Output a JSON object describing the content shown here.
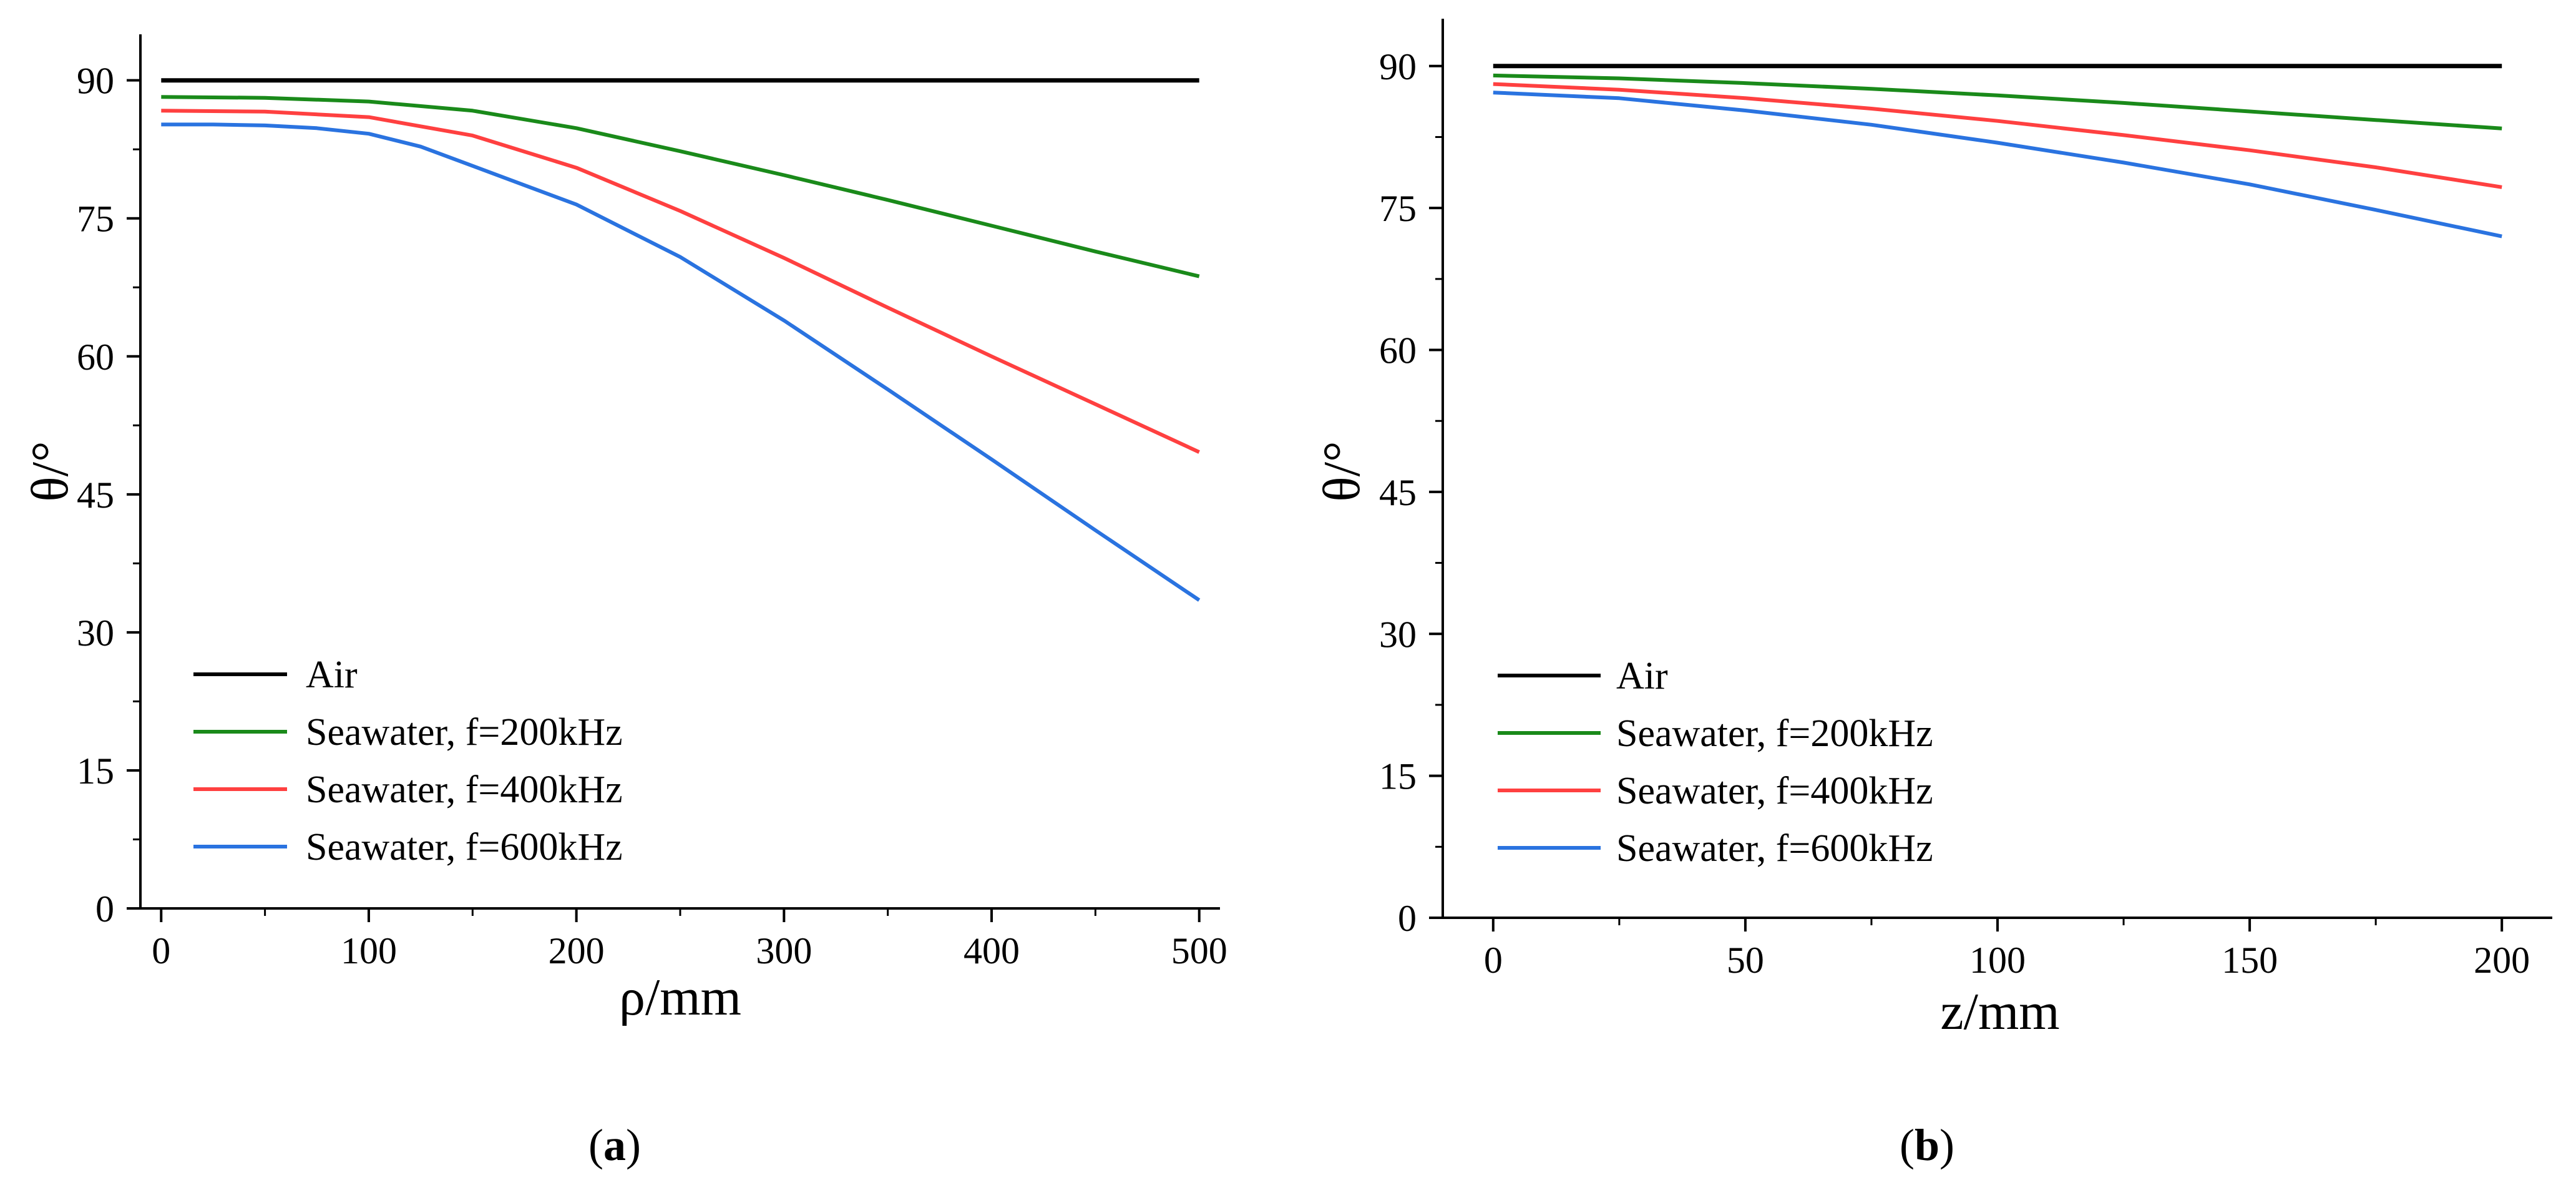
{
  "chart_data": [
    {
      "panel": "a",
      "type": "line",
      "caption_label": "a",
      "title": "",
      "xlabel": "ρ/mm",
      "ylabel": "θ/°",
      "xlim": [
        -10,
        510
      ],
      "ylim": [
        0,
        95
      ],
      "xticks": [
        0,
        100,
        200,
        300,
        400,
        500
      ],
      "yticks": [
        0,
        15,
        30,
        45,
        60,
        75,
        90
      ],
      "legend_position": "bottom-left",
      "series": [
        {
          "name": "Air",
          "color": "#000000",
          "x": [
            0,
            500
          ],
          "y": [
            90,
            90
          ]
        },
        {
          "name": "Seawater, f=200kHz",
          "color": "#1a8a1a",
          "x": [
            0,
            50,
            100,
            150,
            200,
            250,
            300,
            350,
            400,
            450,
            500
          ],
          "y": [
            88.2,
            88.1,
            87.7,
            86.7,
            84.8,
            82.3,
            79.7,
            77.0,
            74.2,
            71.4,
            68.7
          ]
        },
        {
          "name": "Seawater, f=400kHz",
          "color": "#ff4040",
          "x": [
            0,
            50,
            100,
            150,
            200,
            250,
            300,
            350,
            400,
            450,
            500
          ],
          "y": [
            86.7,
            86.6,
            86.0,
            84.0,
            80.5,
            75.8,
            70.7,
            65.3,
            60.0,
            54.8,
            49.6
          ]
        },
        {
          "name": "Seawater, f=600kHz",
          "color": "#2a73e0",
          "x": [
            0,
            25,
            50,
            75,
            100,
            125,
            150,
            175,
            200,
            250,
            300,
            350,
            400,
            450,
            500
          ],
          "y": [
            85.2,
            85.2,
            85.1,
            84.8,
            84.2,
            82.8,
            80.7,
            78.6,
            76.5,
            70.8,
            63.9,
            56.4,
            48.8,
            41.1,
            33.5
          ]
        }
      ]
    },
    {
      "panel": "b",
      "type": "line",
      "caption_label": "b",
      "title": "",
      "xlabel": "z/mm",
      "ylabel": "θ/°",
      "xlim": [
        -10,
        210
      ],
      "ylim": [
        0,
        95
      ],
      "xticks": [
        0,
        50,
        100,
        150,
        200
      ],
      "yticks": [
        0,
        15,
        30,
        45,
        60,
        75,
        90
      ],
      "legend_position": "bottom-left",
      "series": [
        {
          "name": "Air",
          "color": "#000000",
          "x": [
            0,
            200
          ],
          "y": [
            90,
            90
          ]
        },
        {
          "name": "Seawater, f=200kHz",
          "color": "#1a8a1a",
          "x": [
            0,
            25,
            50,
            75,
            100,
            125,
            150,
            175,
            200
          ],
          "y": [
            89.0,
            88.7,
            88.2,
            87.6,
            86.9,
            86.1,
            85.2,
            84.3,
            83.4
          ]
        },
        {
          "name": "Seawater, f=400kHz",
          "color": "#ff4040",
          "x": [
            0,
            25,
            50,
            75,
            100,
            125,
            150,
            175,
            200
          ],
          "y": [
            88.1,
            87.5,
            86.6,
            85.5,
            84.2,
            82.7,
            81.1,
            79.3,
            77.2
          ]
        },
        {
          "name": "Seawater, f=600kHz",
          "color": "#2a73e0",
          "x": [
            0,
            25,
            50,
            75,
            100,
            125,
            150,
            175,
            200
          ],
          "y": [
            87.2,
            86.6,
            85.3,
            83.8,
            81.9,
            79.8,
            77.5,
            74.8,
            72.0
          ]
        }
      ]
    }
  ]
}
